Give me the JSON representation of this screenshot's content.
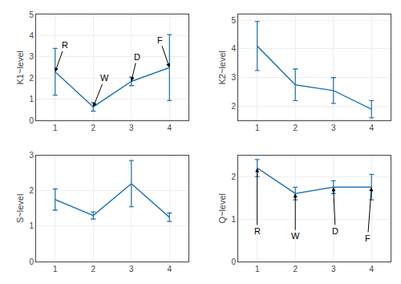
{
  "chart_data": [
    {
      "type": "line",
      "ylabel": "K1~level",
      "x": [
        1,
        2,
        3,
        4
      ],
      "values": [
        2.3,
        0.65,
        1.85,
        2.5
      ],
      "errors": [
        1.1,
        0.2,
        0.2,
        1.55
      ],
      "color": "#2878b5",
      "xlim": [
        0.5,
        4.5
      ],
      "xticks": [
        1,
        2,
        3,
        4
      ],
      "ylim": [
        0,
        5
      ],
      "yticks": [
        0,
        1,
        2,
        3,
        4,
        5
      ],
      "grid": true,
      "annotations": [
        {
          "text": "R",
          "xy": [
            1,
            2.3
          ],
          "xytext": [
            1.25,
            3.55
          ]
        },
        {
          "text": "W",
          "xy": [
            2,
            0.65
          ],
          "xytext": [
            2.3,
            2.0
          ]
        },
        {
          "text": "D",
          "xy": [
            3,
            1.85
          ],
          "xytext": [
            3.15,
            3.0
          ]
        },
        {
          "text": "F",
          "xy": [
            4,
            2.5
          ],
          "xytext": [
            3.75,
            3.8
          ]
        }
      ]
    },
    {
      "type": "line",
      "ylabel": "K2~level",
      "x": [
        1,
        2,
        3,
        4
      ],
      "values": [
        4.1,
        2.75,
        2.55,
        1.9
      ],
      "errors": [
        0.85,
        0.55,
        0.45,
        0.3
      ],
      "color": "#2878b5",
      "xlim": [
        0.5,
        4.5
      ],
      "xticks": [
        1,
        2,
        3,
        4
      ],
      "ylim": [
        1.5,
        5.2
      ],
      "yticks": [
        2,
        3,
        4,
        5
      ],
      "grid": true
    },
    {
      "type": "line",
      "ylabel": "S~level",
      "x": [
        1,
        2,
        3,
        4
      ],
      "values": [
        1.75,
        1.3,
        2.2,
        1.25
      ],
      "errors": [
        0.3,
        0.1,
        0.65,
        0.12
      ],
      "color": "#2878b5",
      "xlim": [
        0.5,
        4.5
      ],
      "xticks": [
        1,
        2,
        3,
        4
      ],
      "ylim": [
        0,
        3
      ],
      "yticks": [
        0,
        1,
        2,
        3
      ],
      "grid": true
    },
    {
      "type": "line",
      "ylabel": "Q~level",
      "x": [
        1,
        2,
        3,
        4
      ],
      "values": [
        2.2,
        1.6,
        1.75,
        1.75
      ],
      "errors": [
        0.2,
        0.15,
        0.15,
        0.3
      ],
      "color": "#2878b5",
      "xlim": [
        0.5,
        4.5
      ],
      "xticks": [
        1,
        2,
        3,
        4
      ],
      "ylim": [
        0,
        2.5
      ],
      "yticks": [
        0,
        1,
        2
      ],
      "grid": true,
      "annotations": [
        {
          "text": "R",
          "xy": [
            1,
            2.2
          ],
          "xytext": [
            1.0,
            0.72
          ]
        },
        {
          "text": "W",
          "xy": [
            2,
            1.6
          ],
          "xytext": [
            2.0,
            0.6
          ]
        },
        {
          "text": "D",
          "xy": [
            3,
            1.75
          ],
          "xytext": [
            3.05,
            0.72
          ]
        },
        {
          "text": "F",
          "xy": [
            4,
            1.75
          ],
          "xytext": [
            3.9,
            0.55
          ]
        }
      ]
    }
  ]
}
